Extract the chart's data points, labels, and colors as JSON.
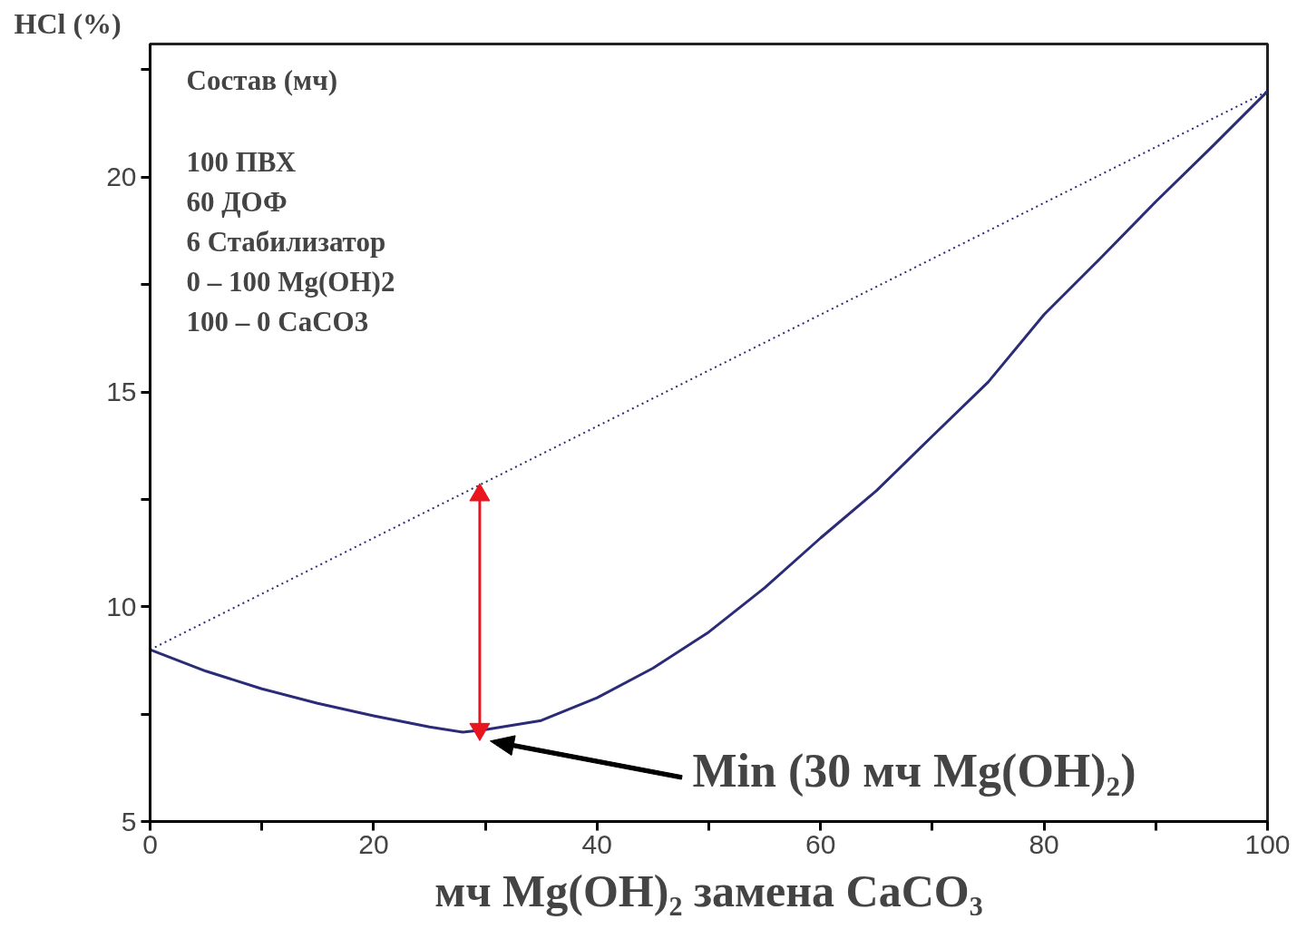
{
  "chart_data": {
    "type": "line",
    "xlabel": "мч Mg(OH)₂ замена CaCO₃",
    "ylabel": "HCl (%)",
    "xlim": [
      0,
      100
    ],
    "ylim": [
      5,
      23.1
    ],
    "xticks": [
      0,
      {
        "value": 10,
        "label": null
      },
      20,
      {
        "value": 30,
        "label": null
      },
      40,
      {
        "value": 50,
        "label": null
      },
      60,
      {
        "value": 70,
        "label": null
      },
      80,
      {
        "value": 90,
        "label": null
      },
      100
    ],
    "yticks": [
      5,
      {
        "value": 7.5,
        "label": null
      },
      10,
      {
        "value": 12.5,
        "label": null
      },
      15,
      {
        "value": 17.5,
        "label": null
      },
      20,
      {
        "value": 22.5,
        "label": null
      }
    ],
    "grid": false,
    "series": [
      {
        "color": "#2b2b78",
        "line_style": "solid",
        "x": [
          0,
          5,
          10,
          15,
          20,
          25,
          28,
          30,
          35,
          40,
          45,
          50,
          55,
          60,
          65,
          70,
          75,
          80,
          85,
          90,
          95,
          100
        ],
        "values": [
          9.0,
          8.5,
          8.09,
          7.75,
          7.46,
          7.2,
          7.08,
          7.14,
          7.35,
          7.88,
          8.57,
          9.41,
          10.44,
          11.6,
          12.7,
          13.97,
          15.23,
          16.8,
          18.1,
          19.43,
          20.7,
          22.0
        ]
      },
      {
        "color": "#2b2b78",
        "line_style": "dotted",
        "x": [
          0,
          100
        ],
        "values": [
          9.0,
          22.0
        ]
      },
      {
        "color": "#e8141e",
        "line_style": "solid",
        "marker": "triangle",
        "x": [
          29.5,
          29.5
        ],
        "values": [
          7.15,
          12.6
        ]
      }
    ],
    "annotations": [
      "Состав (мч)",
      "100 ПВХ",
      "60   ДОФ",
      "6     Стабилизатор",
      "0 – 100 Mg(OH)2",
      "100 – 0  CaCO3",
      "Min (30 мч Mg(OH)₂)"
    ]
  }
}
